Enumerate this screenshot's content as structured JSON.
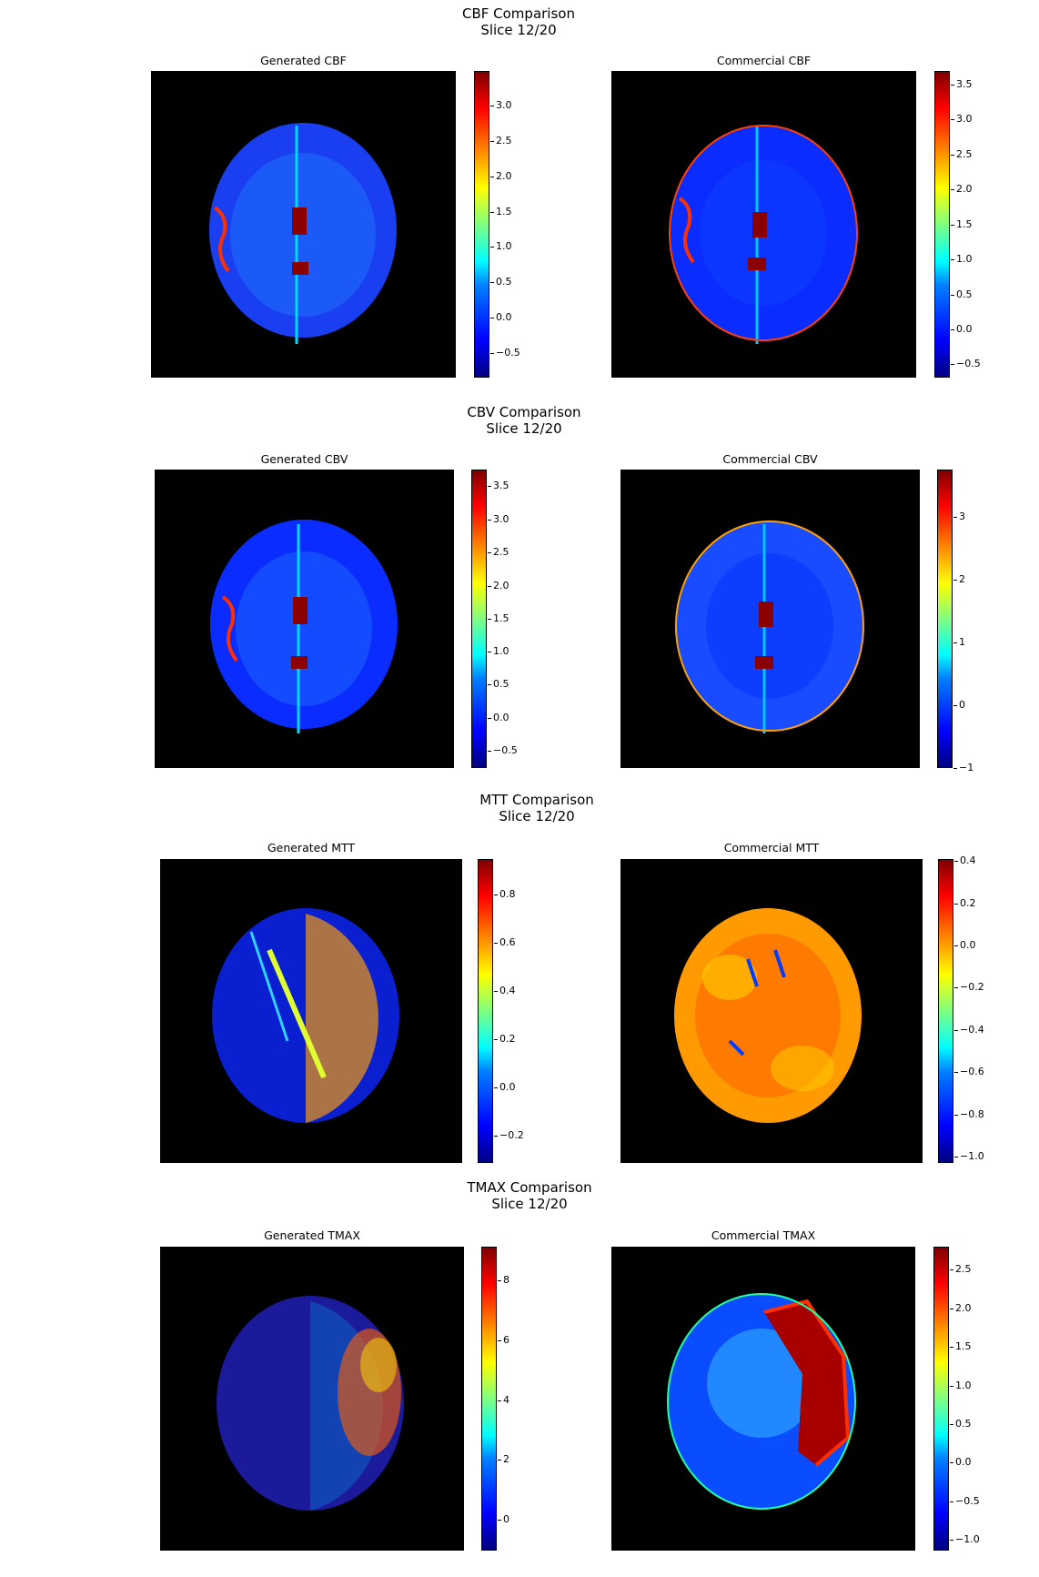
{
  "sections": [
    {
      "title": "CBF Comparison\nSlice 12/20",
      "left": {
        "title": "Generated CBF",
        "colorbar_ticks": [
          "3.0",
          "2.5",
          "2.0",
          "1.5",
          "1.0",
          "0.5",
          "0.0",
          "−0.5"
        ]
      },
      "right": {
        "title": "Commercial CBF",
        "colorbar_ticks": [
          "3.5",
          "3.0",
          "2.5",
          "2.0",
          "1.5",
          "1.0",
          "0.5",
          "0.0",
          "−0.5"
        ]
      }
    },
    {
      "title": "CBV Comparison\nSlice 12/20",
      "left": {
        "title": "Generated CBV",
        "colorbar_ticks": [
          "3.5",
          "3.0",
          "2.5",
          "2.0",
          "1.5",
          "1.0",
          "0.5",
          "0.0",
          "−0.5"
        ]
      },
      "right": {
        "title": "Commercial CBV",
        "colorbar_ticks": [
          "3",
          "2",
          "1",
          "0",
          "−1"
        ]
      }
    },
    {
      "title": "MTT Comparison\nSlice 12/20",
      "left": {
        "title": "Generated MTT",
        "colorbar_ticks": [
          "0.8",
          "0.6",
          "0.4",
          "0.2",
          "0.0",
          "−0.2"
        ]
      },
      "right": {
        "title": "Commercial MTT",
        "colorbar_ticks": [
          "0.4",
          "0.2",
          "0.0",
          "−0.2",
          "−0.4",
          "−0.6",
          "−0.8",
          "−1.0"
        ]
      }
    },
    {
      "title": "TMAX Comparison\nSlice 12/20",
      "left": {
        "title": "Generated TMAX",
        "colorbar_ticks": [
          "8",
          "6",
          "4",
          "2",
          "0"
        ]
      },
      "right": {
        "title": "Commercial TMAX",
        "colorbar_ticks": [
          "2.5",
          "2.0",
          "1.5",
          "1.0",
          "0.5",
          "0.0",
          "−0.5",
          "−1.0"
        ]
      }
    }
  ],
  "colors": {
    "background": "#000000",
    "jet_low": "#00007f",
    "jet_high": "#7f0000"
  }
}
